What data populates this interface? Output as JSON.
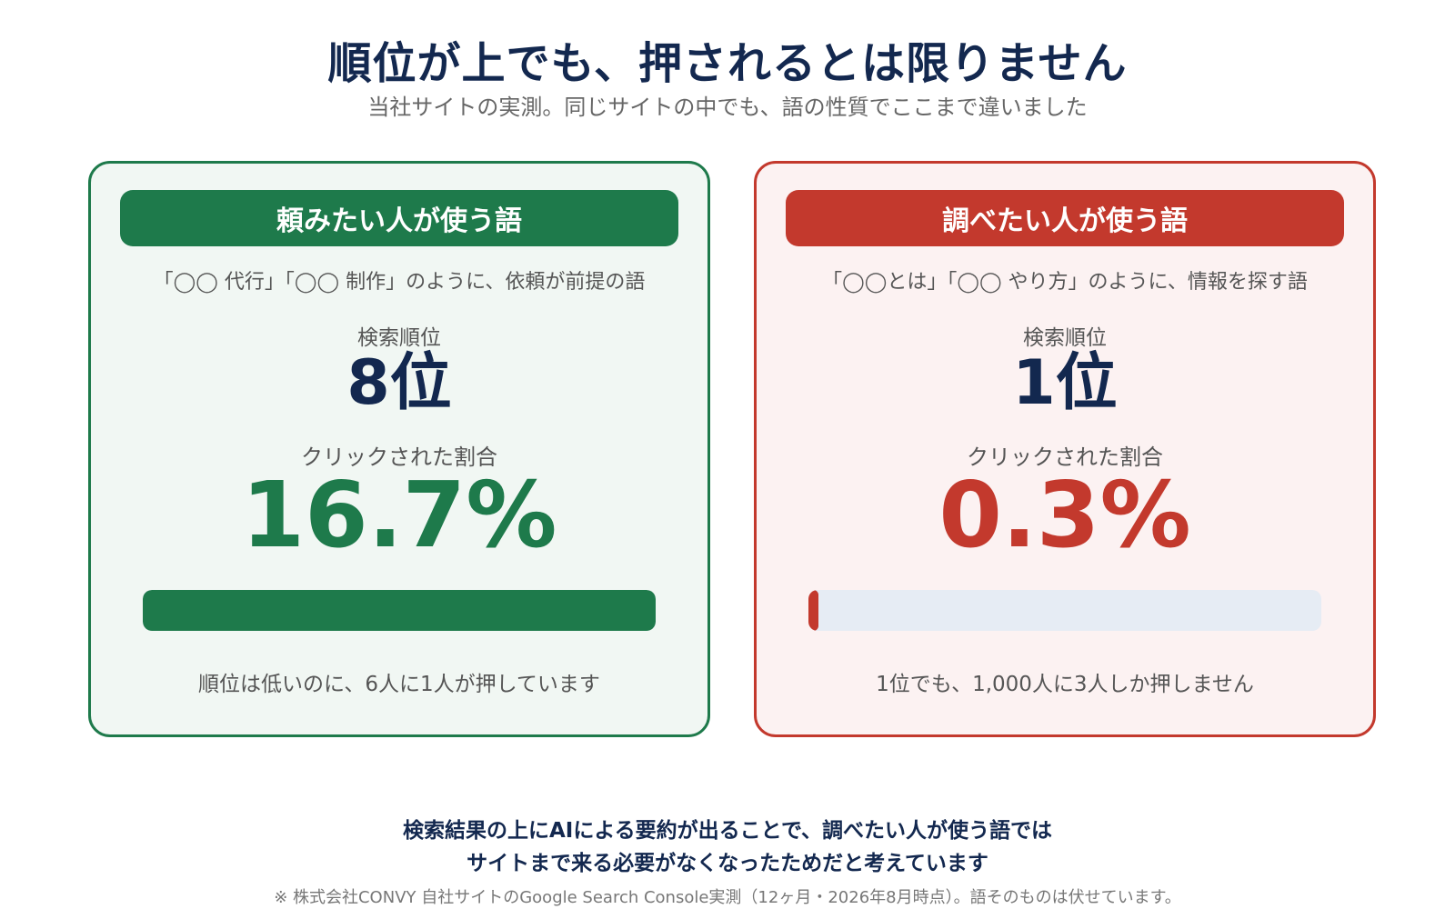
{
  "header": {
    "title": "順位が上でも、押されるとは限りません",
    "subtitle": "当社サイトの実測。同じサイトの中でも、語の性質でここまで違いました"
  },
  "cards": [
    {
      "header": "頼みたい人が使う語",
      "description": "「◯◯ 代行」「◯◯ 制作」のように、依頼が前提の語",
      "rank_label": "検索順位",
      "rank_value": "8位",
      "ctr_label": "クリックされた割合",
      "ctr_value": "16.7%",
      "bar_fraction": 1.0,
      "note": "順位は低いのに、6人に1人が押しています",
      "accent_color": "#1e7a4b"
    },
    {
      "header": "調べたい人が使う語",
      "description": "「◯◯とは」「◯◯ やり方」のように、情報を探す語",
      "rank_label": "検索順位",
      "rank_value": "1位",
      "ctr_label": "クリックされた割合",
      "ctr_value": "0.3%",
      "bar_fraction": 0.018,
      "note": "1位でも、1,000人に3人しか押しません",
      "accent_color": "#c3392d"
    }
  ],
  "conclusion": {
    "line1": "検索結果の上にAIによる要約が出ることで、調べたい人が使う語では",
    "line2": "サイトまで来る必要がなくなったためだと考えています"
  },
  "footnote": "※ 株式会社CONVY 自社サイトのGoogle Search Console実測（12ヶ月・2026年8月時点）。語そのものは伏せています。",
  "colors": {
    "navy": "#13284f",
    "green": "#1e7a4b",
    "red": "#c3392d",
    "bar_track": "#e6ecf4"
  }
}
